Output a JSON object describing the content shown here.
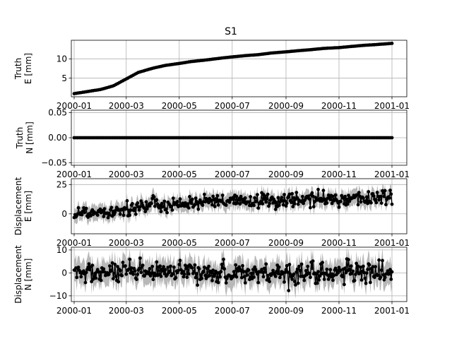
{
  "figure": {
    "title": "S1"
  },
  "chart_data": [
    {
      "type": "line",
      "ylabel": [
        "Truth",
        "E [mm]"
      ],
      "xlim": [
        "2000-01-01",
        "2001-01-01"
      ],
      "ylim": [
        0.2,
        14.8
      ],
      "yticks": [
        5,
        10
      ],
      "ytick_labels": [
        "5",
        "10"
      ],
      "xticks": [
        "2000-01-01",
        "2000-03-01",
        "2000-05-01",
        "2000-07-01",
        "2000-09-01",
        "2000-11-01",
        "2001-01-01"
      ],
      "xtick_labels": [
        "2000-01",
        "2000-03",
        "2000-05",
        "2000-07",
        "2000-09",
        "2000-11",
        "2001-01"
      ],
      "grid": true,
      "series": [
        {
          "marker": "circle",
          "color": "#000000",
          "x": [
            "2000-01-01",
            "2000-01-15",
            "2000-02-01",
            "2000-02-15",
            "2000-03-01",
            "2000-03-15",
            "2000-04-01",
            "2000-04-15",
            "2000-05-01",
            "2000-05-15",
            "2000-06-01",
            "2000-06-15",
            "2000-07-01",
            "2000-07-15",
            "2000-08-01",
            "2000-08-15",
            "2000-09-01",
            "2000-09-15",
            "2000-10-01",
            "2000-10-15",
            "2000-11-01",
            "2000-11-15",
            "2000-12-01",
            "2000-12-15",
            "2001-01-01"
          ],
          "y": [
            1.0,
            1.5,
            2.1,
            3.0,
            4.8,
            6.5,
            7.6,
            8.3,
            8.8,
            9.3,
            9.7,
            10.1,
            10.5,
            10.8,
            11.1,
            11.5,
            11.8,
            12.1,
            12.4,
            12.7,
            12.9,
            13.2,
            13.5,
            13.7,
            14.0
          ]
        }
      ]
    },
    {
      "type": "line",
      "ylabel": [
        "Truth",
        "N [mm]"
      ],
      "xlim": [
        "2000-01-01",
        "2001-01-01"
      ],
      "ylim": [
        -0.055,
        0.055
      ],
      "yticks": [
        -0.05,
        0.0,
        0.05
      ],
      "ytick_labels": [
        "−0.05",
        "0.00",
        "0.05"
      ],
      "xticks": [
        "2000-01-01",
        "2000-03-01",
        "2000-05-01",
        "2000-07-01",
        "2000-09-01",
        "2000-11-01",
        "2001-01-01"
      ],
      "xtick_labels": [
        "2000-01",
        "2000-03",
        "2000-05",
        "2000-07",
        "2000-09",
        "2000-11",
        "2001-01"
      ],
      "grid": true,
      "series": [
        {
          "marker": "circle",
          "color": "#000000",
          "x": [
            "2000-01-01",
            "2001-01-01"
          ],
          "y": [
            0.0,
            0.0
          ]
        }
      ]
    },
    {
      "type": "line",
      "ylabel": [
        "Displacement",
        "E [mm]"
      ],
      "xlim": [
        "2000-01-01",
        "2001-01-01"
      ],
      "ylim": [
        -17,
        30
      ],
      "yticks": [
        0,
        25
      ],
      "ytick_labels": [
        "0",
        "25"
      ],
      "xticks": [
        "2000-01-01",
        "2000-03-01",
        "2000-05-01",
        "2000-07-01",
        "2000-09-01",
        "2000-11-01",
        "2001-01-01"
      ],
      "xtick_labels": [
        "2000-01",
        "2000-03",
        "2000-05",
        "2000-07",
        "2000-09",
        "2000-11",
        "2001-01"
      ],
      "grid": true,
      "noise_std": 3.2,
      "band_halfwidth": 6.5,
      "band_color": "#b8b8b8",
      "series": [
        {
          "marker": "circle",
          "color": "#000000",
          "x": [
            "2000-01-01",
            "2000-01-15",
            "2000-02-01",
            "2000-02-15",
            "2000-03-01",
            "2000-03-15",
            "2000-04-01",
            "2000-04-15",
            "2000-05-01",
            "2000-05-15",
            "2000-06-01",
            "2000-06-15",
            "2000-07-01",
            "2000-07-15",
            "2000-08-01",
            "2000-08-15",
            "2000-09-01",
            "2000-09-15",
            "2000-10-01",
            "2000-10-15",
            "2000-11-01",
            "2000-11-15",
            "2000-12-01",
            "2000-12-15",
            "2001-01-01"
          ],
          "y": [
            0.5,
            1.0,
            2.0,
            3.0,
            4.5,
            6.0,
            7.2,
            8.0,
            8.5,
            9.2,
            9.6,
            10.0,
            10.3,
            10.6,
            10.9,
            11.3,
            11.6,
            11.9,
            12.2,
            12.5,
            12.7,
            13.0,
            13.3,
            13.5,
            13.8
          ]
        }
      ]
    },
    {
      "type": "line",
      "ylabel": [
        "Displacement",
        "N [mm]"
      ],
      "xlim": [
        "2000-01-01",
        "2001-01-01"
      ],
      "ylim": [
        -12.5,
        11.2
      ],
      "yticks": [
        -10,
        0,
        10
      ],
      "ytick_labels": [
        "−10",
        "0",
        "10"
      ],
      "xticks": [
        "2000-01-01",
        "2000-03-01",
        "2000-05-01",
        "2000-07-01",
        "2000-09-01",
        "2000-11-01",
        "2001-01-01"
      ],
      "xtick_labels": [
        "2000-01",
        "2000-03",
        "2000-05",
        "2000-07",
        "2000-09",
        "2000-11",
        "2001-01"
      ],
      "grid": true,
      "noise_std": 2.3,
      "band_halfwidth": 5.2,
      "band_color": "#b8b8b8",
      "series": [
        {
          "marker": "circle",
          "color": "#000000",
          "x": [
            "2000-01-01",
            "2001-01-01"
          ],
          "y": [
            0.0,
            0.0
          ]
        }
      ]
    }
  ]
}
